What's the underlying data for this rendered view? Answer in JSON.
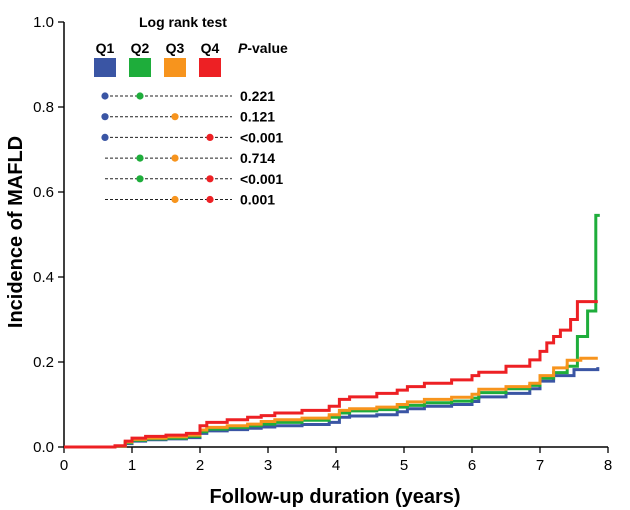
{
  "chart_data": {
    "type": "line",
    "step": true,
    "title": "",
    "xlabel": "Follow-up duration (years)",
    "ylabel": "Incidence of MAFLD",
    "xlim": [
      0,
      8
    ],
    "ylim": [
      0,
      1.0
    ],
    "xticks": [
      "0",
      "1",
      "2",
      "3",
      "4",
      "5",
      "6",
      "7",
      "8"
    ],
    "yticks": [
      "0.0",
      "0.2",
      "0.4",
      "0.6",
      "0.8",
      "1.0"
    ],
    "legend": {
      "title": "Log rank test",
      "pvalue_header_prefix": "P",
      "pvalue_header_suffix": "-value",
      "placement": "top-left"
    },
    "series": [
      {
        "name": "Q1",
        "color": "#3A55A4",
        "points": [
          [
            0,
            0
          ],
          [
            0.75,
            0.002
          ],
          [
            0.9,
            0.008
          ],
          [
            1.0,
            0.014
          ],
          [
            1.2,
            0.017
          ],
          [
            1.5,
            0.019
          ],
          [
            1.8,
            0.022
          ],
          [
            2.0,
            0.032
          ],
          [
            2.1,
            0.038
          ],
          [
            2.4,
            0.041
          ],
          [
            2.7,
            0.044
          ],
          [
            2.9,
            0.047
          ],
          [
            3.1,
            0.05
          ],
          [
            3.5,
            0.053
          ],
          [
            3.9,
            0.058
          ],
          [
            4.05,
            0.07
          ],
          [
            4.2,
            0.073
          ],
          [
            4.6,
            0.076
          ],
          [
            4.9,
            0.083
          ],
          [
            5.05,
            0.09
          ],
          [
            5.3,
            0.096
          ],
          [
            5.7,
            0.1
          ],
          [
            6.0,
            0.107
          ],
          [
            6.1,
            0.118
          ],
          [
            6.5,
            0.126
          ],
          [
            6.85,
            0.137
          ],
          [
            7.0,
            0.155
          ],
          [
            7.2,
            0.168
          ],
          [
            7.5,
            0.182
          ],
          [
            7.85,
            0.188
          ]
        ]
      },
      {
        "name": "Q2",
        "color": "#1EAD3B",
        "points": [
          [
            0,
            0
          ],
          [
            0.75,
            0.002
          ],
          [
            0.9,
            0.01
          ],
          [
            1.0,
            0.016
          ],
          [
            1.2,
            0.019
          ],
          [
            1.5,
            0.021
          ],
          [
            1.8,
            0.025
          ],
          [
            2.0,
            0.036
          ],
          [
            2.1,
            0.042
          ],
          [
            2.4,
            0.046
          ],
          [
            2.7,
            0.05
          ],
          [
            2.9,
            0.054
          ],
          [
            3.1,
            0.058
          ],
          [
            3.5,
            0.063
          ],
          [
            3.9,
            0.07
          ],
          [
            4.05,
            0.08
          ],
          [
            4.2,
            0.085
          ],
          [
            4.6,
            0.088
          ],
          [
            4.9,
            0.094
          ],
          [
            5.05,
            0.098
          ],
          [
            5.3,
            0.104
          ],
          [
            5.7,
            0.108
          ],
          [
            6.0,
            0.115
          ],
          [
            6.1,
            0.128
          ],
          [
            6.5,
            0.137
          ],
          [
            6.85,
            0.145
          ],
          [
            7.0,
            0.162
          ],
          [
            7.2,
            0.175
          ],
          [
            7.4,
            0.19
          ],
          [
            7.55,
            0.26
          ],
          [
            7.7,
            0.32
          ],
          [
            7.82,
            0.545
          ],
          [
            7.88,
            0.545
          ]
        ]
      },
      {
        "name": "Q3",
        "color": "#F7941D",
        "points": [
          [
            0,
            0
          ],
          [
            0.75,
            0.002
          ],
          [
            0.9,
            0.012
          ],
          [
            1.0,
            0.018
          ],
          [
            1.2,
            0.021
          ],
          [
            1.5,
            0.024
          ],
          [
            1.8,
            0.028
          ],
          [
            2.0,
            0.04
          ],
          [
            2.1,
            0.046
          ],
          [
            2.4,
            0.05
          ],
          [
            2.7,
            0.054
          ],
          [
            2.9,
            0.06
          ],
          [
            3.1,
            0.064
          ],
          [
            3.5,
            0.068
          ],
          [
            3.9,
            0.076
          ],
          [
            4.05,
            0.086
          ],
          [
            4.2,
            0.09
          ],
          [
            4.6,
            0.094
          ],
          [
            4.9,
            0.1
          ],
          [
            5.05,
            0.106
          ],
          [
            5.3,
            0.112
          ],
          [
            5.7,
            0.117
          ],
          [
            6.0,
            0.124
          ],
          [
            6.1,
            0.136
          ],
          [
            6.5,
            0.142
          ],
          [
            6.85,
            0.15
          ],
          [
            7.0,
            0.168
          ],
          [
            7.2,
            0.186
          ],
          [
            7.4,
            0.204
          ],
          [
            7.6,
            0.209
          ],
          [
            7.85,
            0.209
          ]
        ]
      },
      {
        "name": "Q4",
        "color": "#ED2024",
        "points": [
          [
            0,
            0
          ],
          [
            0.75,
            0.003
          ],
          [
            0.9,
            0.014
          ],
          [
            1.0,
            0.021
          ],
          [
            1.2,
            0.025
          ],
          [
            1.5,
            0.028
          ],
          [
            1.8,
            0.032
          ],
          [
            2.0,
            0.05
          ],
          [
            2.1,
            0.058
          ],
          [
            2.4,
            0.064
          ],
          [
            2.7,
            0.07
          ],
          [
            2.9,
            0.074
          ],
          [
            3.1,
            0.08
          ],
          [
            3.5,
            0.086
          ],
          [
            3.9,
            0.096
          ],
          [
            4.05,
            0.112
          ],
          [
            4.2,
            0.118
          ],
          [
            4.6,
            0.126
          ],
          [
            4.9,
            0.134
          ],
          [
            5.05,
            0.142
          ],
          [
            5.3,
            0.15
          ],
          [
            5.7,
            0.158
          ],
          [
            6.0,
            0.168
          ],
          [
            6.1,
            0.176
          ],
          [
            6.5,
            0.19
          ],
          [
            6.85,
            0.205
          ],
          [
            7.0,
            0.225
          ],
          [
            7.1,
            0.245
          ],
          [
            7.2,
            0.26
          ],
          [
            7.3,
            0.275
          ],
          [
            7.45,
            0.3
          ],
          [
            7.55,
            0.342
          ],
          [
            7.85,
            0.342
          ]
        ]
      }
    ],
    "comparisons": [
      {
        "groups": [
          "Q1",
          "Q2"
        ],
        "p": "0.221"
      },
      {
        "groups": [
          "Q1",
          "Q3"
        ],
        "p": "0.121"
      },
      {
        "groups": [
          "Q1",
          "Q4"
        ],
        "p": "<0.001"
      },
      {
        "groups": [
          "Q2",
          "Q3"
        ],
        "p": "0.714"
      },
      {
        "groups": [
          "Q2",
          "Q4"
        ],
        "p": "<0.001"
      },
      {
        "groups": [
          "Q3",
          "Q4"
        ],
        "p": "0.001"
      }
    ]
  }
}
